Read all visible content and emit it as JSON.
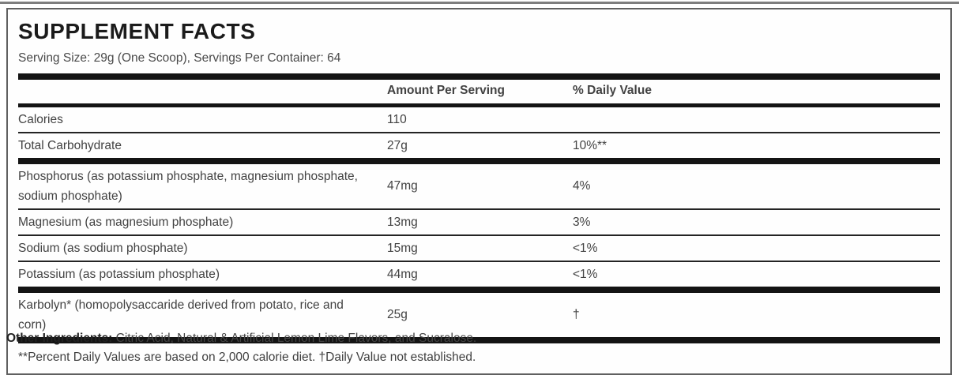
{
  "label": {
    "title": "SUPPLEMENT FACTS",
    "serving_info": "Serving Size: 29g (One Scoop), Servings Per Container: 64",
    "table": {
      "columns": {
        "amount": "Amount Per Serving",
        "dv": "% Daily Value"
      },
      "rows": [
        {
          "name": "Calories",
          "amount": "110",
          "dv": ""
        },
        {
          "name": "Total Carbohydrate",
          "amount": "27g",
          "dv": "10%**"
        },
        {
          "name": "Phosphorus (as potassium phosphate, magnesium phosphate, sodium phosphate)",
          "amount": "47mg",
          "dv": "4%"
        },
        {
          "name": "Magnesium (as magnesium phosphate)",
          "amount": "13mg",
          "dv": "3%"
        },
        {
          "name": "Sodium (as sodium phosphate)",
          "amount": "15mg",
          "dv": "<1%"
        },
        {
          "name": "Potassium (as potassium phosphate)",
          "amount": "44mg",
          "dv": "<1%"
        },
        {
          "name": "Karbolyn* (homopolysaccaride derived from potato, rice and corn)",
          "amount": "25g",
          "dv": "†"
        }
      ]
    },
    "footnote": "**Percent Daily Values are based on 2,000 calorie diet. †Daily Value not established.",
    "other_ingredients": {
      "label": "Other Ingredients:",
      "text": "Citric Acid, Natural & Artificial Lemon Lime Flavors, and Sucralose."
    }
  },
  "colors": {
    "bar": "#141414",
    "box_border": "#606060",
    "title": "#1b1b1b",
    "body_text": "#424242",
    "top_rule": "#7e7e7e"
  }
}
